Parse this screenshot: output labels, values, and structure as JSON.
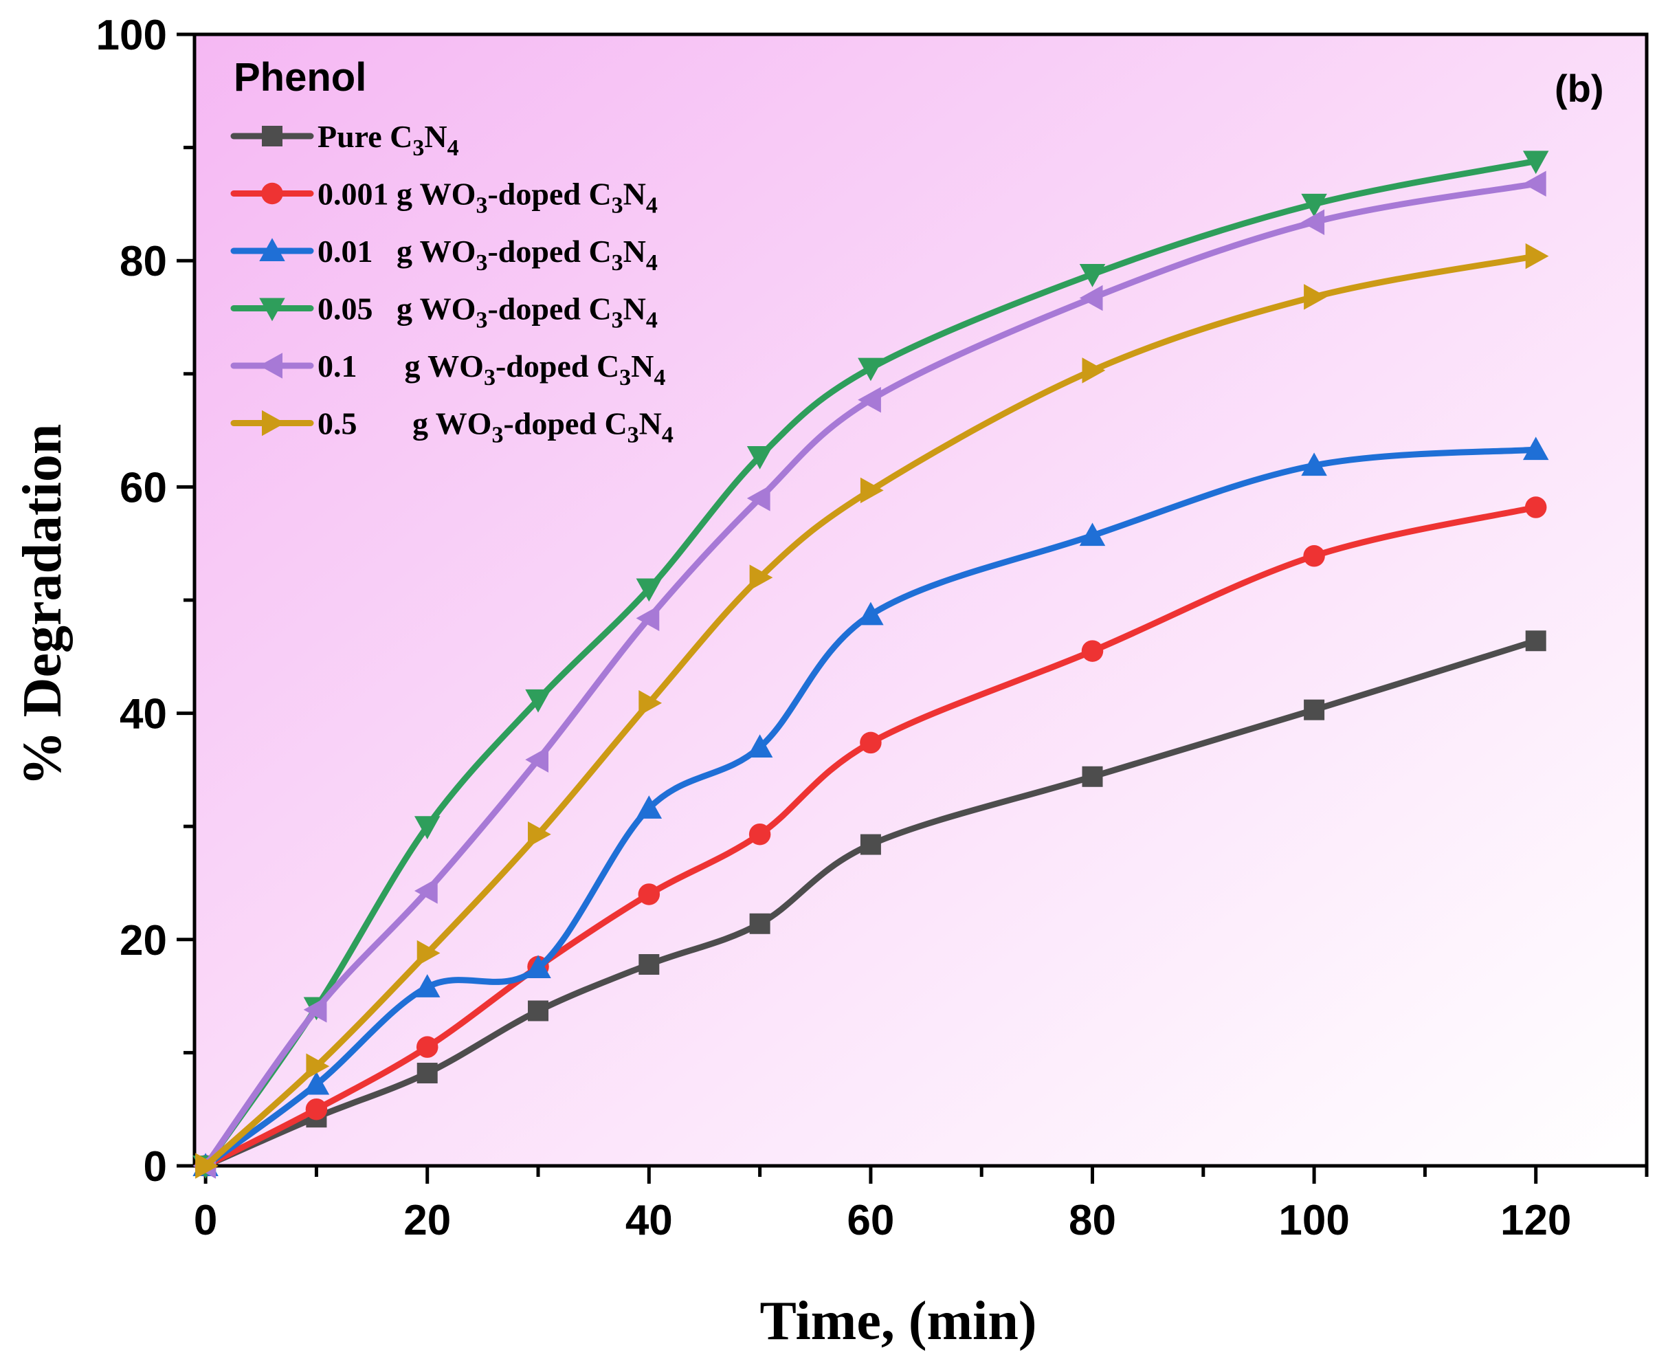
{
  "chart_data": {
    "type": "line",
    "panel_label": "(b)",
    "legend_title": "Phenol",
    "xlabel": "Time, (min)",
    "ylabel": "% Degradation",
    "xlim": [
      -1,
      130
    ],
    "ylim": [
      0,
      100
    ],
    "xticks": [
      0,
      20,
      40,
      60,
      80,
      100,
      120
    ],
    "yticks": [
      0,
      20,
      40,
      60,
      80,
      100
    ],
    "x": [
      0,
      10,
      20,
      30,
      40,
      50,
      60,
      80,
      100,
      120
    ],
    "legend_position": "top-left",
    "series": [
      {
        "name": "Pure C3N4",
        "label": "Pure C",
        "sub1": "3",
        "mid": "N",
        "sub2": "4",
        "tail": "",
        "color": "#4d4d4d",
        "marker": "square",
        "values": [
          0,
          4.3,
          8.2,
          13.7,
          17.8,
          21.4,
          28.4,
          34.4,
          40.3,
          46.4
        ]
      },
      {
        "name": "0.001 g WO3-doped C3N4",
        "label": "0.001 g WO",
        "sub1": "3",
        "mid": "-doped C",
        "sub2": "3",
        "tail": "N",
        "sub3": "4",
        "color": "#ee3333",
        "marker": "circle",
        "values": [
          0,
          5.0,
          10.5,
          17.6,
          24.0,
          29.3,
          37.4,
          45.5,
          53.9,
          58.2
        ]
      },
      {
        "name": "0.01 g WO3-doped C3N4",
        "label": "0.01   g WO",
        "sub1": "3",
        "mid": "-doped C",
        "sub2": "3",
        "tail": "N",
        "sub3": "4",
        "color": "#1f6fd6",
        "marker": "triangle-up",
        "values": [
          0,
          7.2,
          15.8,
          17.5,
          31.6,
          37.0,
          48.7,
          55.7,
          61.9,
          63.3
        ]
      },
      {
        "name": "0.05 g WO3-doped C3N4",
        "label": "0.05   g WO",
        "sub1": "3",
        "mid": "-doped C",
        "sub2": "3",
        "tail": "N",
        "sub3": "4",
        "color": "#2e9e5b",
        "marker": "triangle-down",
        "values": [
          0,
          14.0,
          30.0,
          41.2,
          51.0,
          62.7,
          70.5,
          78.8,
          85.0,
          88.8
        ]
      },
      {
        "name": "0.1 g WO3-doped C3N4",
        "label": "0.1      g WO",
        "sub1": "3",
        "mid": "-doped C",
        "sub2": "3",
        "tail": "N",
        "sub3": "4",
        "color": "#a779d6",
        "marker": "triangle-left",
        "values": [
          0,
          13.8,
          24.3,
          35.9,
          48.4,
          59.0,
          67.7,
          76.7,
          83.4,
          86.8
        ]
      },
      {
        "name": "0.5 g WO3-doped C3N4",
        "label": "0.5       g WO",
        "sub1": "3",
        "mid": "-doped C",
        "sub2": "3",
        "tail": "N",
        "sub3": "4",
        "color": "#cc9a15",
        "marker": "triangle-right",
        "values": [
          0,
          8.8,
          18.8,
          29.3,
          40.9,
          52.0,
          59.7,
          70.3,
          76.8,
          80.4
        ]
      }
    ]
  }
}
